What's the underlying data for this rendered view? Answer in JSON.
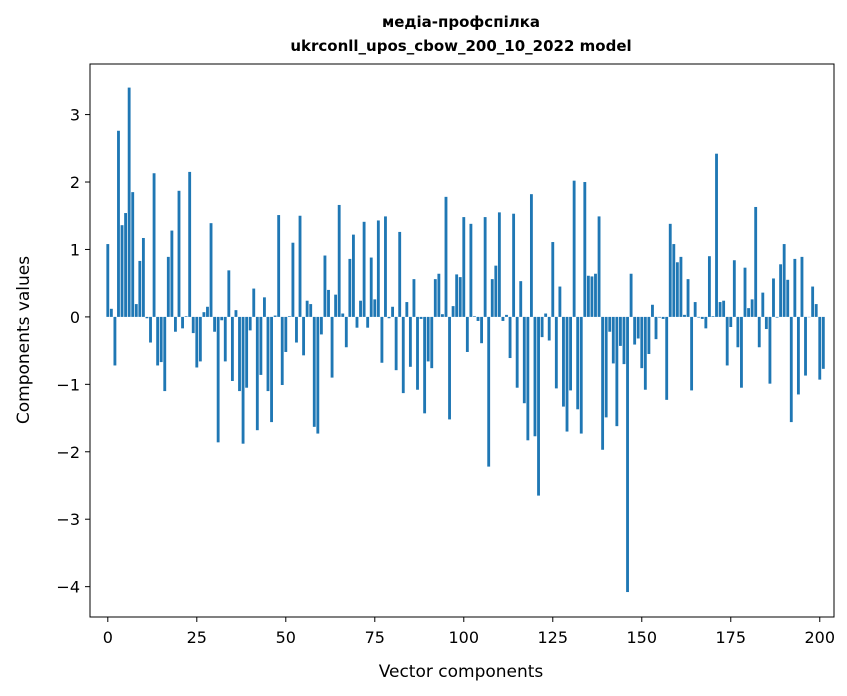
{
  "chart_data": {
    "type": "bar",
    "title_line1": "медіа-профспілка",
    "title_line2": "ukrconll_upos_cbow_200_10_2022 model",
    "xlabel": "Vector components",
    "ylabel": "Components values",
    "xlim": [
      -5,
      204
    ],
    "ylim": [
      -4.45,
      3.75
    ],
    "xticks": [
      0,
      25,
      50,
      75,
      100,
      125,
      150,
      175,
      200
    ],
    "yticks": [
      -4,
      -3,
      -2,
      -1,
      0,
      1,
      2,
      3
    ],
    "ytick_labels": [
      "−4",
      "−3",
      "−2",
      "−1",
      "0",
      "1",
      "2",
      "3"
    ],
    "bar_color": "#1f77b4",
    "values": [
      1.08,
      0.12,
      -0.72,
      2.76,
      1.36,
      1.54,
      3.4,
      1.85,
      0.19,
      0.83,
      1.17,
      -0.02,
      -0.38,
      2.13,
      -0.72,
      -0.67,
      -1.1,
      0.89,
      1.28,
      -0.22,
      1.87,
      -0.17,
      0.01,
      2.15,
      -0.24,
      -0.75,
      -0.66,
      0.07,
      0.15,
      1.39,
      -0.22,
      -1.86,
      -0.05,
      -0.66,
      0.69,
      -0.95,
      0.1,
      -1.1,
      -1.88,
      -1.05,
      -0.2,
      0.42,
      -1.68,
      -0.86,
      0.29,
      -1.1,
      -1.56,
      0.02,
      1.51,
      -1.01,
      -0.52,
      0.01,
      1.1,
      -0.38,
      1.5,
      -0.57,
      0.24,
      0.19,
      -1.63,
      -1.73,
      -0.26,
      0.91,
      0.4,
      -0.9,
      0.33,
      1.66,
      0.05,
      -0.45,
      0.86,
      1.22,
      -0.16,
      0.24,
      1.41,
      -0.16,
      0.88,
      0.26,
      1.43,
      -0.68,
      1.49,
      -0.02,
      0.15,
      -0.79,
      1.26,
      -1.13,
      0.22,
      -0.74,
      0.56,
      -1.08,
      -0.03,
      -1.43,
      -0.66,
      -0.76,
      0.56,
      0.64,
      0.04,
      1.78,
      -1.52,
      0.16,
      0.63,
      0.59,
      1.48,
      -0.52,
      1.38,
      0.01,
      -0.06,
      -0.39,
      1.48,
      -2.22,
      0.56,
      0.76,
      1.55,
      -0.06,
      0.03,
      -0.61,
      1.53,
      -1.05,
      0.53,
      -1.28,
      -1.83,
      1.82,
      -1.77,
      -2.65,
      -0.3,
      0.05,
      -0.35,
      1.11,
      -1.06,
      0.45,
      -1.33,
      -1.7,
      -1.09,
      2.02,
      -1.37,
      -1.73,
      2.0,
      0.61,
      0.6,
      0.64,
      1.49,
      -1.97,
      -1.49,
      -0.22,
      -0.69,
      -1.62,
      -0.43,
      -0.7,
      -4.08,
      0.64,
      -0.41,
      -0.32,
      -0.76,
      -1.08,
      -0.55,
      0.18,
      -0.33,
      -0.01,
      -0.03,
      -1.23,
      1.38,
      1.08,
      0.81,
      0.89,
      0.03,
      0.56,
      -1.09,
      0.22,
      -0.01,
      -0.03,
      -0.17,
      0.9,
      0.01,
      2.42,
      0.22,
      0.24,
      -0.72,
      -0.15,
      0.84,
      -0.45,
      -1.05,
      0.73,
      0.13,
      0.26,
      1.63,
      -0.45,
      0.36,
      -0.18,
      -0.99,
      0.57,
      -0.01,
      0.78,
      1.08,
      0.55,
      -1.56,
      0.86,
      -1.15,
      0.89,
      -0.87,
      0.0,
      0.45,
      0.19,
      -0.93,
      -0.77
    ]
  }
}
